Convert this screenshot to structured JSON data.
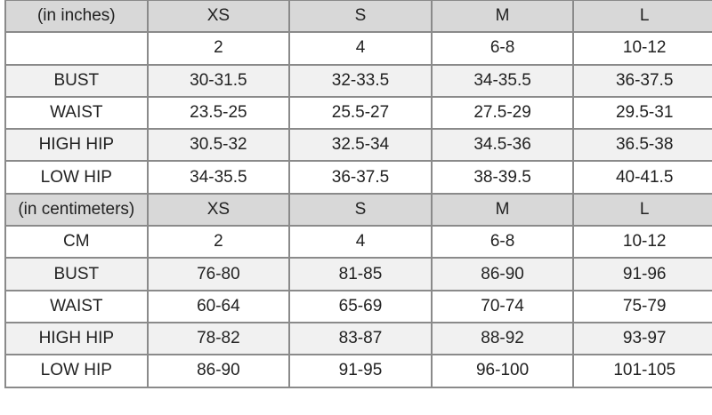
{
  "tables": [
    {
      "header": [
        "(in inches)",
        "XS",
        "S",
        "M",
        "L"
      ],
      "rows": [
        [
          "",
          "2",
          "4",
          "6-8",
          "10-12"
        ],
        [
          "BUST",
          "30-31.5",
          "32-33.5",
          "34-35.5",
          "36-37.5"
        ],
        [
          "WAIST",
          "23.5-25",
          "25.5-27",
          "27.5-29",
          "29.5-31"
        ],
        [
          "HIGH HIP",
          "30.5-32",
          "32.5-34",
          "34.5-36",
          "36.5-38"
        ],
        [
          "LOW HIP",
          "34-35.5",
          "36-37.5",
          "38-39.5",
          "40-41.5"
        ]
      ]
    },
    {
      "header": [
        "(in centimeters)",
        "XS",
        "S",
        "M",
        "L"
      ],
      "rows": [
        [
          "CM",
          "2",
          "4",
          "6-8",
          "10-12"
        ],
        [
          "BUST",
          "76-80",
          "81-85",
          "86-90",
          "91-96"
        ],
        [
          "WAIST",
          "60-64",
          "65-69",
          "70-74",
          "75-79"
        ],
        [
          "HIGH HIP",
          "78-82",
          "83-87",
          "88-92",
          "93-97"
        ],
        [
          "LOW HIP",
          "86-90",
          "91-95",
          "96-100",
          "101-105"
        ]
      ]
    }
  ],
  "colors": {
    "header": "#d8d8d8",
    "shaded_row": "#f1f1f1",
    "border": "#8a8a8a",
    "text": "#222222"
  }
}
